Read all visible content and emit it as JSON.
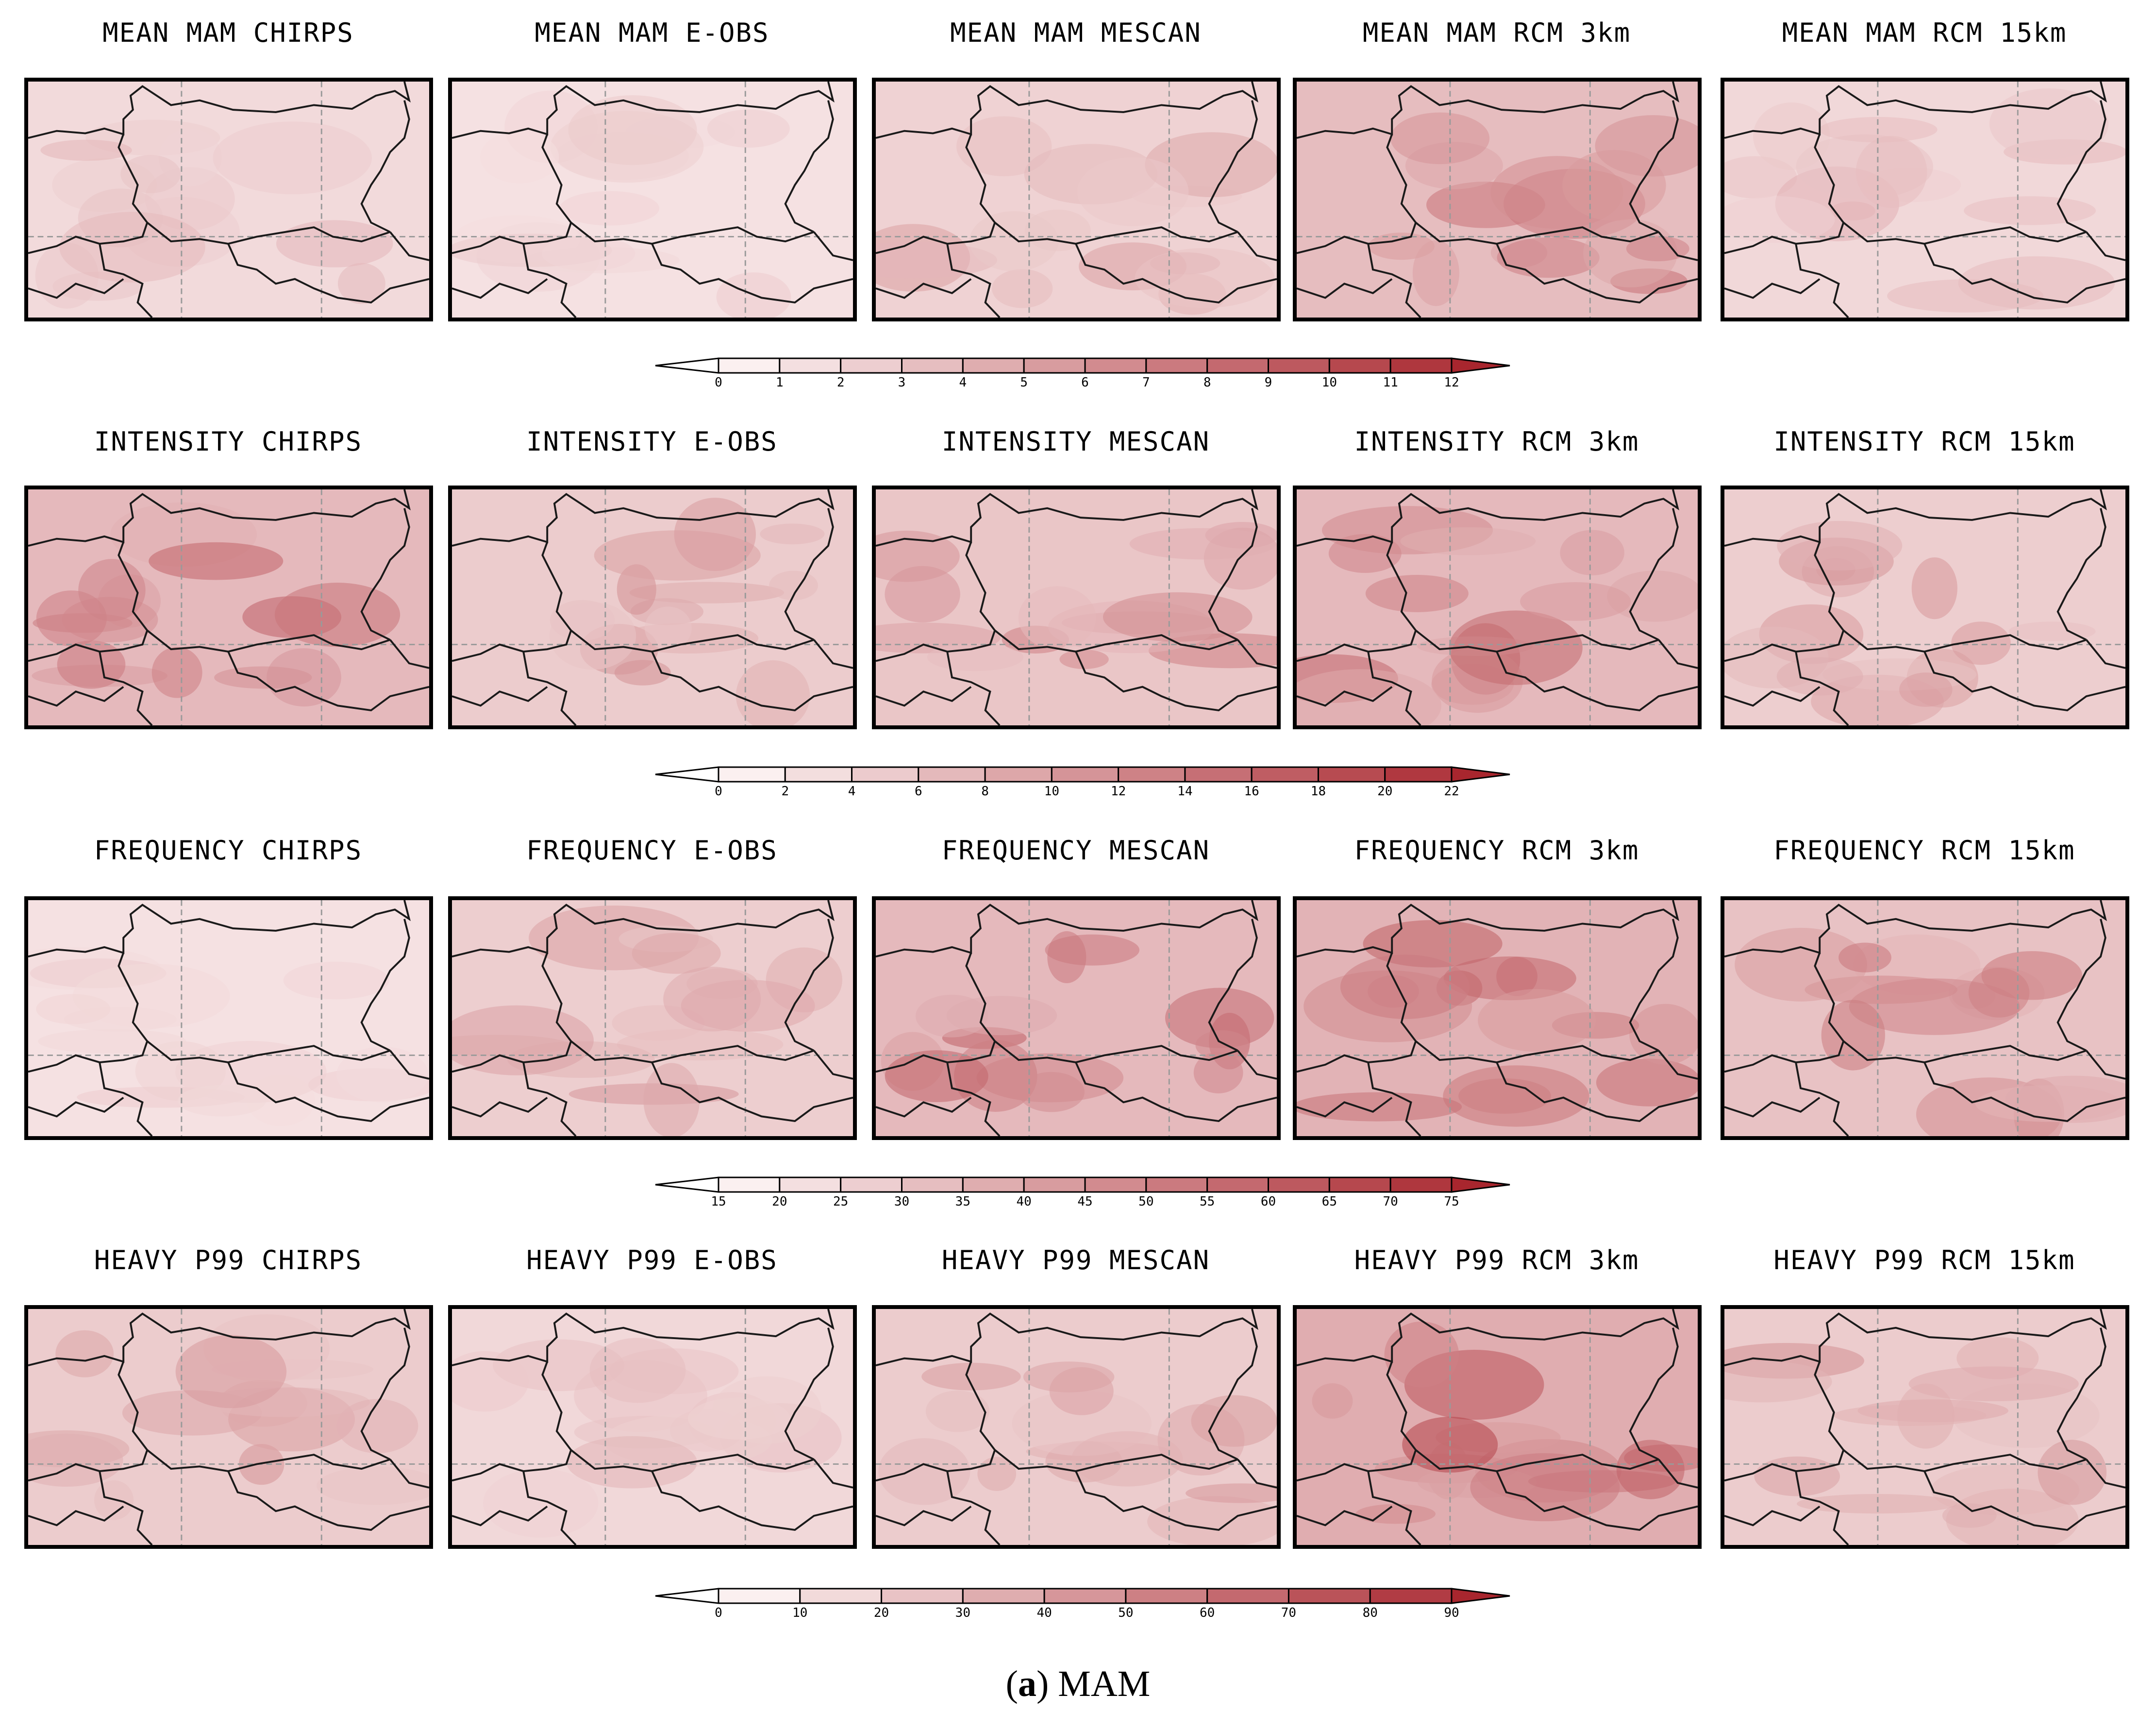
{
  "columns": [
    "CHIRPS",
    "E-OBS",
    "MESCAN",
    "RCM 3km",
    "RCM 15km"
  ],
  "rows": [
    {
      "titles": [
        "MEAN MAM CHIRPS",
        "MEAN MAM E-OBS",
        "MEAN MAM MESCAN",
        "MEAN MAM RCM 3km",
        "MEAN MAM RCM 15km"
      ],
      "colorbar_labels": [
        "0",
        "1",
        "2",
        "3",
        "4",
        "5",
        "6",
        "7",
        "8",
        "9",
        "10",
        "11",
        "12"
      ],
      "panel_levels": [
        0.18,
        0.12,
        0.25,
        0.42,
        0.2
      ]
    },
    {
      "titles": [
        "INTENSITY CHIRPS",
        "INTENSITY E-OBS",
        "INTENSITY MESCAN",
        "INTENSITY RCM 3km",
        "INTENSITY RCM 15km"
      ],
      "colorbar_labels": [
        "0",
        "2",
        "4",
        "6",
        "8",
        "10",
        "12",
        "14",
        "16",
        "18",
        "20",
        "22"
      ],
      "panel_levels": [
        0.45,
        0.3,
        0.35,
        0.45,
        0.28
      ]
    },
    {
      "titles": [
        "FREQUENCY CHIRPS",
        "FREQUENCY E-OBS",
        "FREQUENCY MESCAN",
        "FREQUENCY RCM 3km",
        "FREQUENCY RCM 15km"
      ],
      "colorbar_labels": [
        "15",
        "20",
        "25",
        "30",
        "35",
        "40",
        "45",
        "50",
        "55",
        "60",
        "65",
        "70",
        "75"
      ],
      "panel_levels": [
        0.12,
        0.28,
        0.45,
        0.5,
        0.38
      ]
    },
    {
      "titles": [
        "HEAVY P99 CHIRPS",
        "HEAVY P99 E-OBS",
        "HEAVY P99 MESCAN",
        "HEAVY P99 RCM 3km",
        "HEAVY P99 RCM 15km"
      ],
      "colorbar_labels": [
        "0",
        "10",
        "20",
        "30",
        "40",
        "50",
        "60",
        "70",
        "80",
        "90"
      ],
      "panel_levels": [
        0.3,
        0.2,
        0.3,
        0.55,
        0.3
      ]
    }
  ],
  "colors": {
    "low": "#fbf0f0",
    "high": "#a8262e",
    "border": "#1a1a1a",
    "grid": "#9a9a9a"
  },
  "caption": {
    "letter": "a",
    "text": "MAM"
  }
}
